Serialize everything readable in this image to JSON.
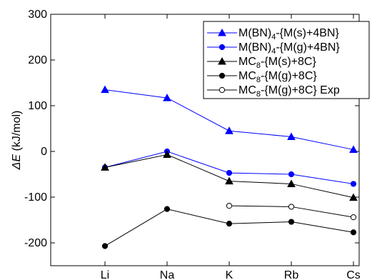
{
  "chart_data": {
    "type": "line",
    "title": "",
    "xlabel": "",
    "ylabel": {
      "symbol": "ΔE",
      "unit": " (kJ/mol)"
    },
    "categories": [
      "Li",
      "Na",
      "K",
      "Rb",
      "Cs"
    ],
    "ylim": [
      -250,
      300
    ],
    "yticks": [
      300,
      200,
      100,
      0,
      -100,
      -200
    ],
    "ytick_labels": [
      "300",
      "200",
      "100",
      "0",
      "-100",
      "-200"
    ],
    "grid": false,
    "legend_position": "top-right",
    "series": [
      {
        "legend": {
          "prefix": "M(BN)",
          "sub": "4",
          "suffix": "-{M(s)+4BN}"
        },
        "color": "#0000ff",
        "marker": "triangle",
        "filled": true,
        "values": [
          135,
          117,
          45,
          32,
          4
        ]
      },
      {
        "legend": {
          "prefix": "M(BN)",
          "sub": "4",
          "suffix": "-{M(g)+4BN}"
        },
        "color": "#0000ff",
        "marker": "circle",
        "filled": true,
        "values": [
          -35,
          0,
          -47,
          -50,
          -71
        ]
      },
      {
        "legend": {
          "prefix": "MC",
          "sub": "8",
          "suffix": "-{M(s)+8C}"
        },
        "color": "#000000",
        "marker": "triangle",
        "filled": true,
        "values": [
          -35,
          -7,
          -65,
          -71,
          -101
        ]
      },
      {
        "legend": {
          "prefix": "MC",
          "sub": "8",
          "suffix": "-{M(g)+8C}"
        },
        "color": "#000000",
        "marker": "circle",
        "filled": true,
        "values": [
          -207,
          -126,
          -158,
          -154,
          -177
        ]
      },
      {
        "legend": {
          "prefix": "MC",
          "sub": "8",
          "suffix": "-{M(g)+8C} Exp"
        },
        "color": "#000000",
        "marker": "circle",
        "filled": false,
        "values": [
          null,
          null,
          -119,
          -121,
          -144
        ]
      }
    ]
  }
}
